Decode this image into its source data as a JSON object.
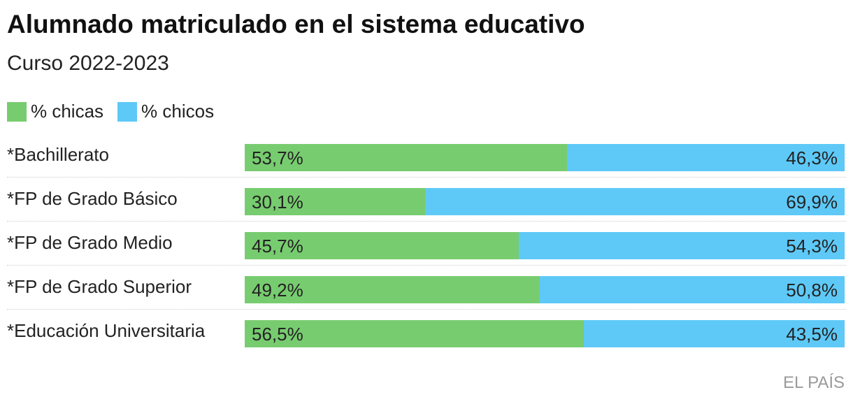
{
  "chart_data": {
    "type": "bar",
    "stacked": true,
    "orientation": "horizontal",
    "title": "Alumnado matriculado en el sistema educativo",
    "subtitle": "Curso 2022-2023",
    "categories": [
      "*Bachillerato",
      "*FP de Grado Básico",
      "*FP de Grado Medio",
      "*FP de Grado Superior",
      "*Educación Universitaria"
    ],
    "series": [
      {
        "name": "% chicas",
        "color": "#78cc70",
        "values": [
          53.7,
          30.1,
          45.7,
          49.2,
          56.5
        ],
        "labels": [
          "53,7%",
          "30,1%",
          "45,7%",
          "49,2%",
          "56,5%"
        ]
      },
      {
        "name": "% chicos",
        "color": "#5ec9f7",
        "values": [
          46.3,
          69.9,
          54.3,
          50.8,
          43.5
        ],
        "labels": [
          "46,3%",
          "69,9%",
          "54,3%",
          "50,8%",
          "43,5%"
        ]
      }
    ],
    "xlim": [
      0,
      100
    ],
    "legend": "top-left",
    "grid": false
  },
  "source": "EL PAÍS"
}
